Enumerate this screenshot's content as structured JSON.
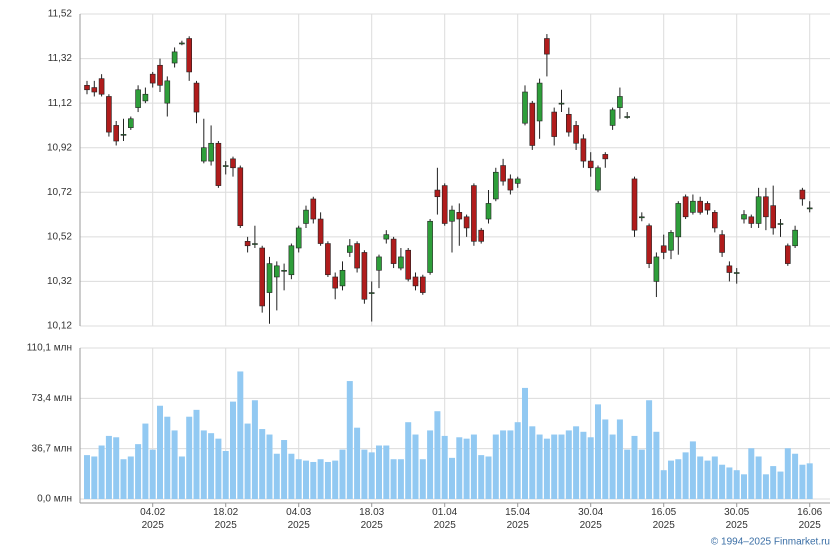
{
  "chart_data": [
    {
      "type": "candlestick",
      "categories": [
        null,
        null,
        null,
        null,
        null,
        null,
        null,
        null,
        null,
        "04.02 2025",
        null,
        null,
        null,
        null,
        null,
        null,
        null,
        null,
        null,
        "18.02 2025",
        null,
        null,
        null,
        null,
        null,
        null,
        null,
        null,
        null,
        "04.03 2025",
        null,
        null,
        null,
        null,
        null,
        null,
        null,
        null,
        null,
        "18.03 2025",
        null,
        null,
        null,
        null,
        null,
        null,
        null,
        null,
        null,
        "01.04 2025",
        null,
        null,
        null,
        null,
        null,
        null,
        null,
        null,
        null,
        "15.04 2025",
        null,
        null,
        null,
        null,
        null,
        null,
        null,
        null,
        null,
        "30.04 2025",
        null,
        null,
        null,
        null,
        null,
        null,
        null,
        null,
        null,
        "16.05 2025",
        null,
        null,
        null,
        null,
        null,
        null,
        null,
        null,
        null,
        "30.05 2025",
        null,
        null,
        null,
        null,
        null,
        null,
        null,
        null,
        null,
        "16.06 2025"
      ],
      "open": [
        11.2,
        11.19,
        11.23,
        11.15,
        11.02,
        10.98,
        11.01,
        11.1,
        11.13,
        11.25,
        11.29,
        11.12,
        11.3,
        11.39,
        11.41,
        11.21,
        10.86,
        10.86,
        10.94,
        10.84,
        10.87,
        10.83,
        10.5,
        10.49,
        10.47,
        10.27,
        10.34,
        10.37,
        10.35,
        10.47,
        10.58,
        10.69,
        10.6,
        10.49,
        10.34,
        10.3,
        10.45,
        10.49,
        10.45,
        10.27,
        10.37,
        10.51,
        10.51,
        10.38,
        10.46,
        10.34,
        10.34,
        10.36,
        10.73,
        10.75,
        10.59,
        10.63,
        10.61,
        10.75,
        10.55,
        10.6,
        10.69,
        10.84,
        10.78,
        10.76,
        11.03,
        11.12,
        11.04,
        11.41,
        11.08,
        11.12,
        11.07,
        11.02,
        10.96,
        10.86,
        10.73,
        10.89,
        11.02,
        11.1,
        11.06,
        10.78,
        10.61,
        10.57,
        10.32,
        10.48,
        10.46,
        10.52,
        10.7,
        10.63,
        10.68,
        10.67,
        10.63,
        10.53,
        10.39,
        10.36,
        10.6,
        10.61,
        10.58,
        10.7,
        10.66,
        10.58,
        10.48,
        10.48,
        10.73,
        10.65
      ],
      "high": [
        11.22,
        11.22,
        11.25,
        11.16,
        11.04,
        11.05,
        11.06,
        11.2,
        11.19,
        11.26,
        11.32,
        11.24,
        11.37,
        11.4,
        11.42,
        11.22,
        11.05,
        11.02,
        10.95,
        10.86,
        10.88,
        10.84,
        10.52,
        10.57,
        10.48,
        10.43,
        10.41,
        10.4,
        10.49,
        10.57,
        10.66,
        10.7,
        10.63,
        10.5,
        10.36,
        10.41,
        10.51,
        10.5,
        10.46,
        10.32,
        10.44,
        10.55,
        10.52,
        10.47,
        10.47,
        10.36,
        10.35,
        10.6,
        10.83,
        10.76,
        10.66,
        10.67,
        10.62,
        10.76,
        10.56,
        10.73,
        10.83,
        10.87,
        10.8,
        10.79,
        11.2,
        11.13,
        11.23,
        11.43,
        11.1,
        11.18,
        11.1,
        11.04,
        10.98,
        10.9,
        10.84,
        10.9,
        11.1,
        11.19,
        11.08,
        10.79,
        10.63,
        10.58,
        10.45,
        10.53,
        10.55,
        10.68,
        10.71,
        10.71,
        10.7,
        10.68,
        10.64,
        10.55,
        10.41,
        10.38,
        10.64,
        10.62,
        10.74,
        10.74,
        10.75,
        10.6,
        10.49,
        10.57,
        10.74,
        10.68
      ],
      "low": [
        11.16,
        11.15,
        11.15,
        10.97,
        10.93,
        10.95,
        11.0,
        11.08,
        11.12,
        11.19,
        11.17,
        11.06,
        11.28,
        11.38,
        11.22,
        11.03,
        10.85,
        10.84,
        10.74,
        10.8,
        10.79,
        10.56,
        10.45,
        10.47,
        10.18,
        10.13,
        10.19,
        10.28,
        10.33,
        10.45,
        10.56,
        10.58,
        10.48,
        10.34,
        10.24,
        10.28,
        10.43,
        10.36,
        10.22,
        10.14,
        10.29,
        10.49,
        10.38,
        10.37,
        10.32,
        10.28,
        10.26,
        10.35,
        10.62,
        10.57,
        10.45,
        10.48,
        10.52,
        10.48,
        10.49,
        10.58,
        10.68,
        10.75,
        10.71,
        10.74,
        11.02,
        10.91,
        10.96,
        11.24,
        10.93,
        11.08,
        10.97,
        10.91,
        10.83,
        10.79,
        10.72,
        10.83,
        11.0,
        11.05,
        11.05,
        10.52,
        10.59,
        10.38,
        10.25,
        10.42,
        10.42,
        10.44,
        10.6,
        10.62,
        10.62,
        10.62,
        10.54,
        10.43,
        10.32,
        10.31,
        10.58,
        10.56,
        10.56,
        10.55,
        10.53,
        10.52,
        10.39,
        10.47,
        10.66,
        10.63
      ],
      "close": [
        11.18,
        11.17,
        11.16,
        10.99,
        10.95,
        10.98,
        11.05,
        11.18,
        11.16,
        11.21,
        11.2,
        11.22,
        11.35,
        11.39,
        11.26,
        11.08,
        10.92,
        10.94,
        10.75,
        10.84,
        10.83,
        10.57,
        10.48,
        10.49,
        10.21,
        10.4,
        10.39,
        10.37,
        10.48,
        10.56,
        10.64,
        10.6,
        10.49,
        10.35,
        10.29,
        10.37,
        10.48,
        10.38,
        10.24,
        10.27,
        10.43,
        10.53,
        10.4,
        10.43,
        10.33,
        10.3,
        10.27,
        10.59,
        10.7,
        10.58,
        10.64,
        10.6,
        10.56,
        10.5,
        10.5,
        10.67,
        10.81,
        10.77,
        10.73,
        10.78,
        11.17,
        10.93,
        11.21,
        11.34,
        10.97,
        11.12,
        10.99,
        10.94,
        10.86,
        10.83,
        10.83,
        10.87,
        11.09,
        11.15,
        11.06,
        10.55,
        10.61,
        10.4,
        10.43,
        10.45,
        10.54,
        10.67,
        10.61,
        10.68,
        10.63,
        10.64,
        10.56,
        10.45,
        10.36,
        10.36,
        10.62,
        10.58,
        10.7,
        10.61,
        10.56,
        10.58,
        10.4,
        10.55,
        10.69,
        10.65
      ],
      "up_color": "#2e9e3a",
      "down_color": "#b01c1c",
      "ylim": [
        10.12,
        11.52
      ],
      "yticks": [
        {
          "value": 10.12,
          "label": "10,12"
        },
        {
          "value": 10.32,
          "label": "10,32"
        },
        {
          "value": 10.52,
          "label": "10,52"
        },
        {
          "value": 10.72,
          "label": "10,72"
        },
        {
          "value": 10.92,
          "label": "10,92"
        },
        {
          "value": 11.12,
          "label": "11,12"
        },
        {
          "value": 11.32,
          "label": "11,32"
        },
        {
          "value": 11.52,
          "label": "11,52"
        }
      ],
      "grid": true
    },
    {
      "type": "bar",
      "values": [
        32,
        31,
        39,
        46,
        45,
        29,
        31,
        40,
        55,
        36,
        68,
        60,
        50,
        31,
        60,
        65,
        50,
        48,
        44,
        35,
        71,
        93,
        55,
        72,
        51,
        47,
        33,
        43,
        33,
        29,
        28,
        27,
        29,
        27,
        28,
        36,
        86,
        52,
        36,
        34,
        39,
        39,
        29,
        29,
        56,
        47,
        29,
        50,
        64,
        46,
        30,
        45,
        44,
        47,
        32,
        31,
        47,
        50,
        50,
        56,
        81,
        53,
        47,
        44,
        47,
        47,
        50,
        53,
        49,
        45,
        69,
        58,
        47,
        58,
        36,
        46,
        36,
        72,
        49,
        21,
        28,
        29,
        34,
        42,
        31,
        28,
        31,
        25,
        23,
        21,
        18,
        37,
        31,
        18,
        24,
        20,
        37,
        33,
        25,
        26
      ],
      "color": "#92c9f2",
      "ylim": [
        0,
        110.1
      ],
      "yticks": [
        {
          "value": 0,
          "label": "0,0 млн"
        },
        {
          "value": 36.7,
          "label": "36,7 млн"
        },
        {
          "value": 73.4,
          "label": "73,4 млн"
        },
        {
          "value": 110.1,
          "label": "110,1 млн"
        }
      ],
      "grid": true
    }
  ],
  "source": "© 1994–2025 Finmarket.ru"
}
